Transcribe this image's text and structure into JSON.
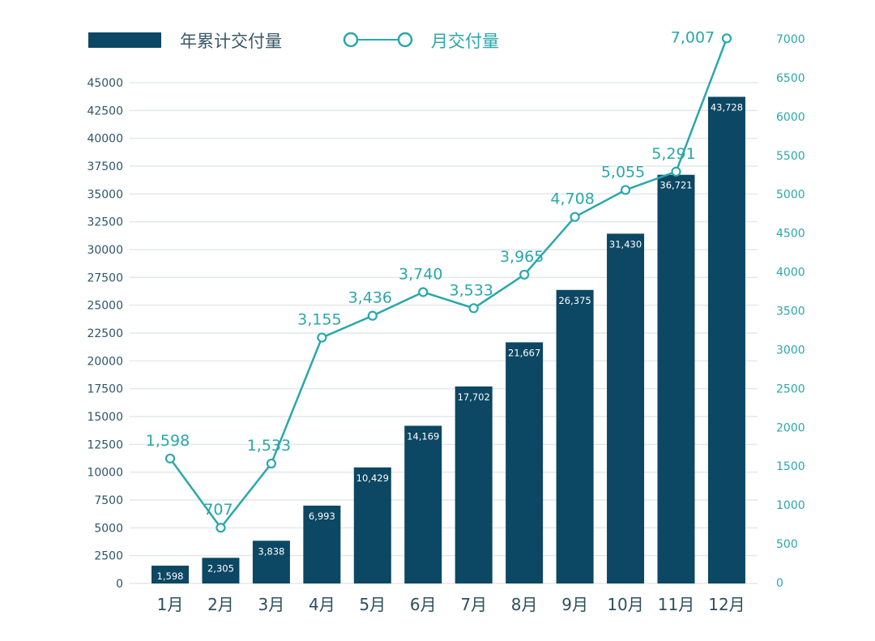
{
  "chart_data": {
    "type": "bar+line",
    "categories": [
      "1月",
      "2月",
      "3月",
      "4月",
      "5月",
      "6月",
      "7月",
      "8月",
      "9月",
      "10月",
      "11月",
      "12月"
    ],
    "series": [
      {
        "name": "年累计交付量",
        "type": "bar",
        "axis": "left",
        "values": [
          1598,
          2305,
          3838,
          6993,
          10429,
          14169,
          17702,
          21667,
          26375,
          31430,
          36721,
          43728
        ],
        "labels": [
          "1,598",
          "2,305",
          "3,838",
          "6,993",
          "10,429",
          "14,169",
          "17,702",
          "21,667",
          "26,375",
          "31,430",
          "36,721",
          "43,728"
        ]
      },
      {
        "name": "月交付量",
        "type": "line",
        "axis": "right",
        "values": [
          1598,
          707,
          1533,
          3155,
          3436,
          3740,
          3533,
          3965,
          4708,
          5055,
          5291,
          7007
        ],
        "labels": [
          "1,598",
          "707",
          "1,533",
          "3,155",
          "3,436",
          "3,740",
          "3,533",
          "3,965",
          "4,708",
          "5,055",
          "5,291",
          "7,007"
        ]
      }
    ],
    "left_axis": {
      "ylim": [
        0,
        45000
      ],
      "ticks": [
        "0",
        "2500",
        "5000",
        "7500",
        "10000",
        "12500",
        "15000",
        "17500",
        "20000",
        "22500",
        "25000",
        "27500",
        "30000",
        "32500",
        "35000",
        "37500",
        "40000",
        "42500",
        "45000"
      ]
    },
    "right_axis": {
      "ylim": [
        0,
        7000
      ],
      "ticks": [
        "0",
        "500",
        "1000",
        "1500",
        "2000",
        "2500",
        "3000",
        "3500",
        "4000",
        "4500",
        "5000",
        "5500",
        "6000",
        "6500",
        "7000"
      ]
    },
    "legend_placement": "top",
    "grid": true,
    "colors": {
      "bar": "#0c4763",
      "line": "#2aa7ab",
      "grid": "#e4e8ea"
    }
  }
}
